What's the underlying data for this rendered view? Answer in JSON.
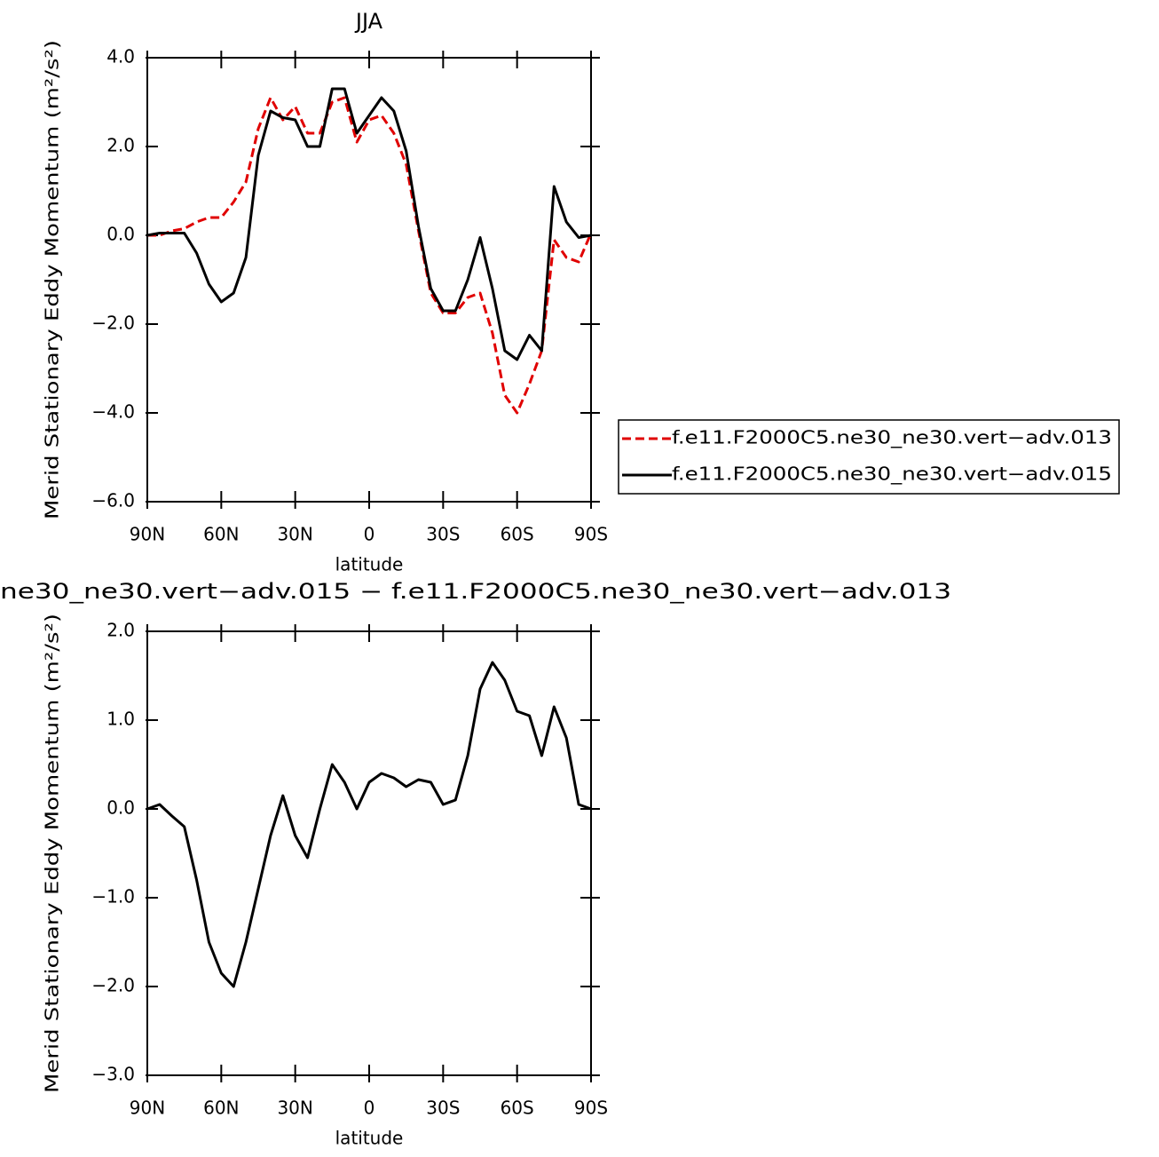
{
  "chart_data": [
    {
      "type": "line",
      "title": "JJA",
      "xlabel": "latitude",
      "ylabel": "Merid Stationary Eddy Momentum (m²/s²)",
      "x": [
        90,
        85,
        80,
        75,
        70,
        65,
        60,
        55,
        50,
        45,
        40,
        35,
        30,
        25,
        20,
        15,
        10,
        5,
        0,
        -5,
        -10,
        -15,
        -20,
        -25,
        -30,
        -35,
        -40,
        -45,
        -50,
        -55,
        -60,
        -65,
        -70,
        -75,
        -80,
        -85,
        -90
      ],
      "xlim": [
        90,
        -90
      ],
      "xticks": [
        {
          "value": 90,
          "label": "90N"
        },
        {
          "value": 60,
          "label": "60N"
        },
        {
          "value": 30,
          "label": "30N"
        },
        0,
        {
          "value": -30,
          "label": "30S"
        },
        {
          "value": -60,
          "label": "60S"
        },
        {
          "value": -90,
          "label": "90S"
        }
      ],
      "ylim": [
        -6,
        4
      ],
      "yticks": [
        {
          "value": -6,
          "label": "−6.0"
        },
        {
          "value": -4,
          "label": "−4.0"
        },
        {
          "value": -2,
          "label": "−2.0"
        },
        {
          "value": 0,
          "label": "0.0"
        },
        {
          "value": 2,
          "label": "2.0"
        },
        {
          "value": 4,
          "label": "4.0"
        }
      ],
      "legend": "right",
      "series": [
        {
          "name": "f.e11.F2000C5.ne30_ne30.vert−adv.013",
          "color": "#e00000",
          "dash": true,
          "values": [
            0.0,
            0.0,
            0.1,
            0.15,
            0.3,
            0.4,
            0.4,
            0.75,
            1.2,
            2.4,
            3.1,
            2.6,
            2.9,
            2.3,
            2.3,
            3.0,
            3.1,
            2.1,
            2.6,
            2.7,
            2.3,
            1.6,
            0.1,
            -1.3,
            -1.75,
            -1.75,
            -1.4,
            -1.3,
            -2.2,
            -3.6,
            -4.0,
            -3.35,
            -2.6,
            -0.1,
            -0.5,
            -0.6,
            0.05
          ]
        },
        {
          "name": "f.e11.F2000C5.ne30_ne30.vert−adv.015",
          "color": "#000000",
          "dash": false,
          "values": [
            0.0,
            0.05,
            0.05,
            0.05,
            -0.4,
            -1.1,
            -1.5,
            -1.3,
            -0.5,
            1.8,
            2.8,
            2.65,
            2.6,
            2.0,
            2.0,
            3.3,
            3.3,
            2.3,
            2.7,
            3.1,
            2.8,
            1.9,
            0.2,
            -1.2,
            -1.7,
            -1.7,
            -1.0,
            -0.05,
            -1.2,
            -2.6,
            -2.8,
            -2.25,
            -2.6,
            1.1,
            0.3,
            -0.05,
            0.0
          ]
        }
      ]
    },
    {
      "type": "line",
      "title": "ne30_ne30.vert−adv.015 − f.e11.F2000C5.ne30_ne30.vert−adv.013",
      "xlabel": "latitude",
      "ylabel": "Merid Stationary Eddy Momentum (m²/s²)",
      "x": [
        90,
        85,
        80,
        75,
        70,
        65,
        60,
        55,
        50,
        45,
        40,
        35,
        30,
        25,
        20,
        15,
        10,
        5,
        0,
        -5,
        -10,
        -15,
        -20,
        -25,
        -30,
        -35,
        -40,
        -45,
        -50,
        -55,
        -60,
        -65,
        -70,
        -75,
        -80,
        -85,
        -90
      ],
      "xlim": [
        90,
        -90
      ],
      "xticks": [
        {
          "value": 90,
          "label": "90N"
        },
        {
          "value": 60,
          "label": "60N"
        },
        {
          "value": 30,
          "label": "30N"
        },
        0,
        {
          "value": -30,
          "label": "30S"
        },
        {
          "value": -60,
          "label": "60S"
        },
        {
          "value": -90,
          "label": "90S"
        }
      ],
      "ylim": [
        -3,
        2
      ],
      "yticks": [
        {
          "value": -3,
          "label": "−3.0"
        },
        {
          "value": -2,
          "label": "−2.0"
        },
        {
          "value": -1,
          "label": "−1.0"
        },
        {
          "value": 0,
          "label": "0.0"
        },
        {
          "value": 1,
          "label": "1.0"
        },
        {
          "value": 2,
          "label": "2.0"
        }
      ],
      "series": [
        {
          "color": "#000000",
          "dash": false,
          "values": [
            0.0,
            0.05,
            -0.08,
            -0.2,
            -0.8,
            -1.5,
            -1.85,
            -2.0,
            -1.5,
            -0.9,
            -0.3,
            0.15,
            -0.3,
            -0.55,
            0.0,
            0.5,
            0.3,
            0.0,
            0.3,
            0.4,
            0.35,
            0.25,
            0.33,
            0.3,
            0.05,
            0.1,
            0.6,
            1.35,
            1.65,
            1.45,
            1.1,
            1.05,
            0.6,
            1.15,
            0.8,
            0.05,
            0.0
          ]
        }
      ]
    }
  ]
}
